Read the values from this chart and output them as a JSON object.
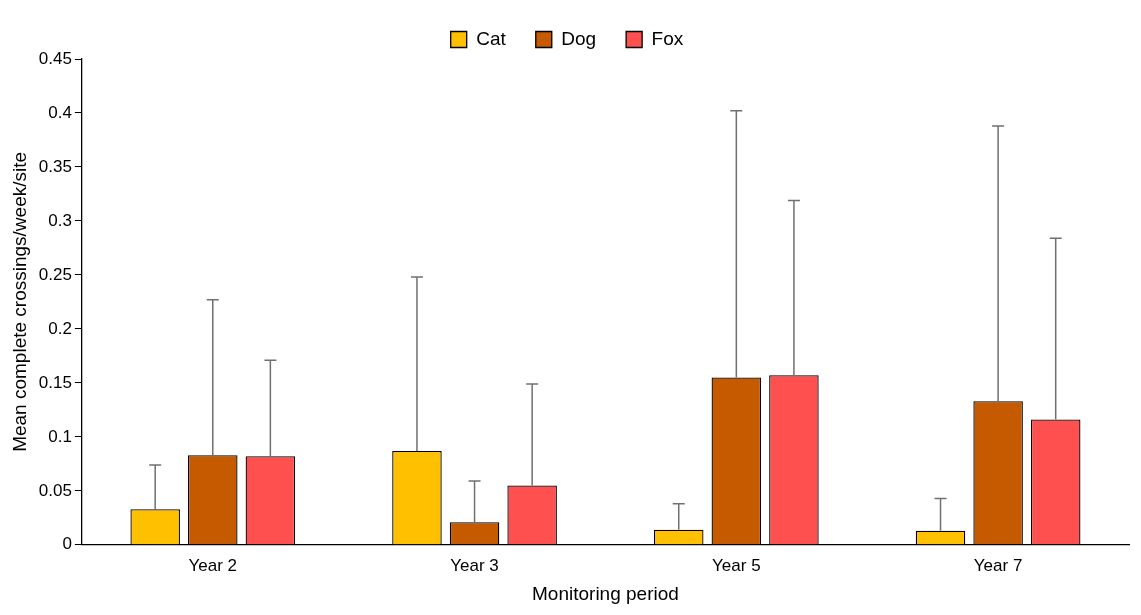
{
  "chart_data": {
    "type": "bar",
    "xlabel": "Monitoring period",
    "ylabel": "Mean complete crossings/week/site",
    "categories": [
      "Year 2",
      "Year 3",
      "Year 5",
      "Year 7"
    ],
    "series": [
      {
        "name": "Cat",
        "color": "#ffc000",
        "values": [
          0.033,
          0.087,
          0.014,
          0.013
        ],
        "errors": [
          [
            0.033,
            0.074
          ],
          [
            0.087,
            0.248
          ],
          [
            0.014,
            0.038
          ],
          [
            0.013,
            0.043
          ]
        ]
      },
      {
        "name": "Dog",
        "color": "#c55a00",
        "values": [
          0.083,
          0.021,
          0.155,
          0.133
        ],
        "errors": [
          [
            0.083,
            0.227
          ],
          [
            0.021,
            0.059
          ],
          [
            0.155,
            0.402
          ],
          [
            0.133,
            0.388
          ]
        ]
      },
      {
        "name": "Fox",
        "color": "#ff5050",
        "values": [
          0.082,
          0.055,
          0.157,
          0.116
        ],
        "errors": [
          [
            0.082,
            0.171
          ],
          [
            0.055,
            0.149
          ],
          [
            0.157,
            0.319
          ],
          [
            0.116,
            0.284
          ]
        ]
      }
    ],
    "ylim": [
      0,
      0.45
    ],
    "yticks": [
      0,
      0.05,
      0.1,
      0.15,
      0.2,
      0.25,
      0.3,
      0.35,
      0.4,
      0.45
    ],
    "legend": "top",
    "grid": false
  }
}
